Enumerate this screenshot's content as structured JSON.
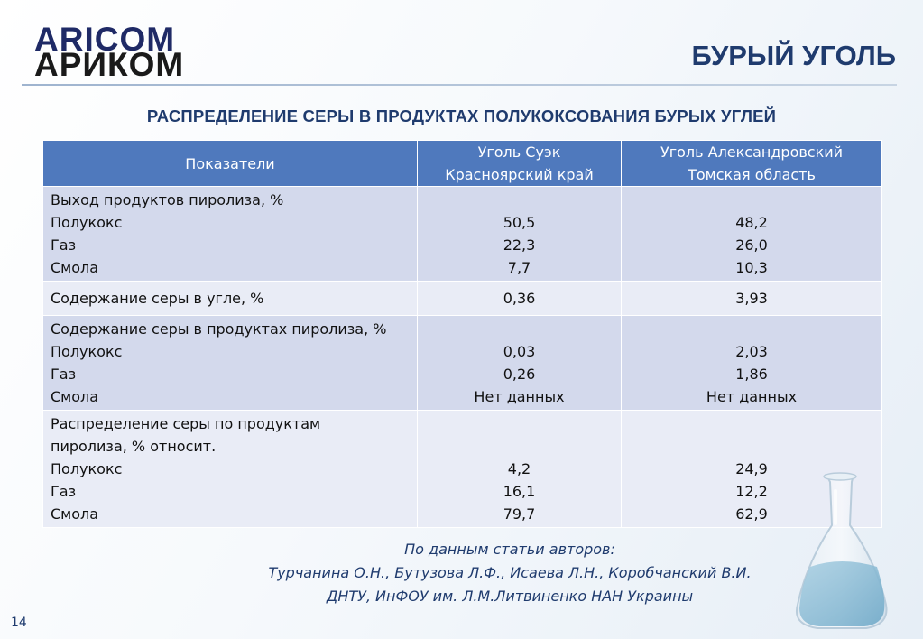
{
  "logo": {
    "top": "ARICOM",
    "bottom": "АРИКОМ"
  },
  "slide_title": "БУРЫЙ УГОЛЬ",
  "subtitle": "РАСПРЕДЕЛЕНИЕ СЕРЫ В ПРОДУКТАХ ПОЛУКОКСОВАНИЯ БУРЫХ УГЛЕЙ",
  "table": {
    "headers": [
      {
        "lines": [
          "Показатели"
        ]
      },
      {
        "lines": [
          "Уголь Суэк",
          "Красноярский край"
        ]
      },
      {
        "lines": [
          "Уголь Александровский",
          "Томская область"
        ]
      }
    ],
    "rows": [
      {
        "label": [
          "Выход продуктов пиролиза, %",
          "Полукокс",
          "Газ",
          "Смола"
        ],
        "col1": [
          "50,5",
          "22,3",
          "7,7"
        ],
        "col2": [
          "48,2",
          "26,0",
          "10,3"
        ]
      },
      {
        "label": [
          "Содержание серы в угле, %"
        ],
        "col1": [
          "0,36"
        ],
        "col2": [
          "3,93"
        ]
      },
      {
        "label": [
          "Содержание серы в продуктах пиролиза, %",
          "Полукокс",
          "Газ",
          "Смола"
        ],
        "col1": [
          "0,03",
          "0,26",
          "Нет данных"
        ],
        "col2": [
          "2,03",
          "1,86",
          "Нет данных"
        ]
      },
      {
        "label": [
          "Распределение серы  по продуктам",
          "пиролиза, % относит.",
          "Полукокс",
          "Газ",
          "Смола"
        ],
        "col1": [
          "4,2",
          "16,1",
          "79,7"
        ],
        "col2": [
          "24,9",
          "12,2",
          "62,9"
        ]
      }
    ]
  },
  "source": [
    "По данным статьи авторов:",
    "Турчанина О.Н., Бутузова Л.Ф., Исаева Л.Н., Коробчанский В.И.",
    "ДНТУ, ИнФОУ им. Л.М.Литвиненко НАН Украины"
  ],
  "page_number": "14"
}
